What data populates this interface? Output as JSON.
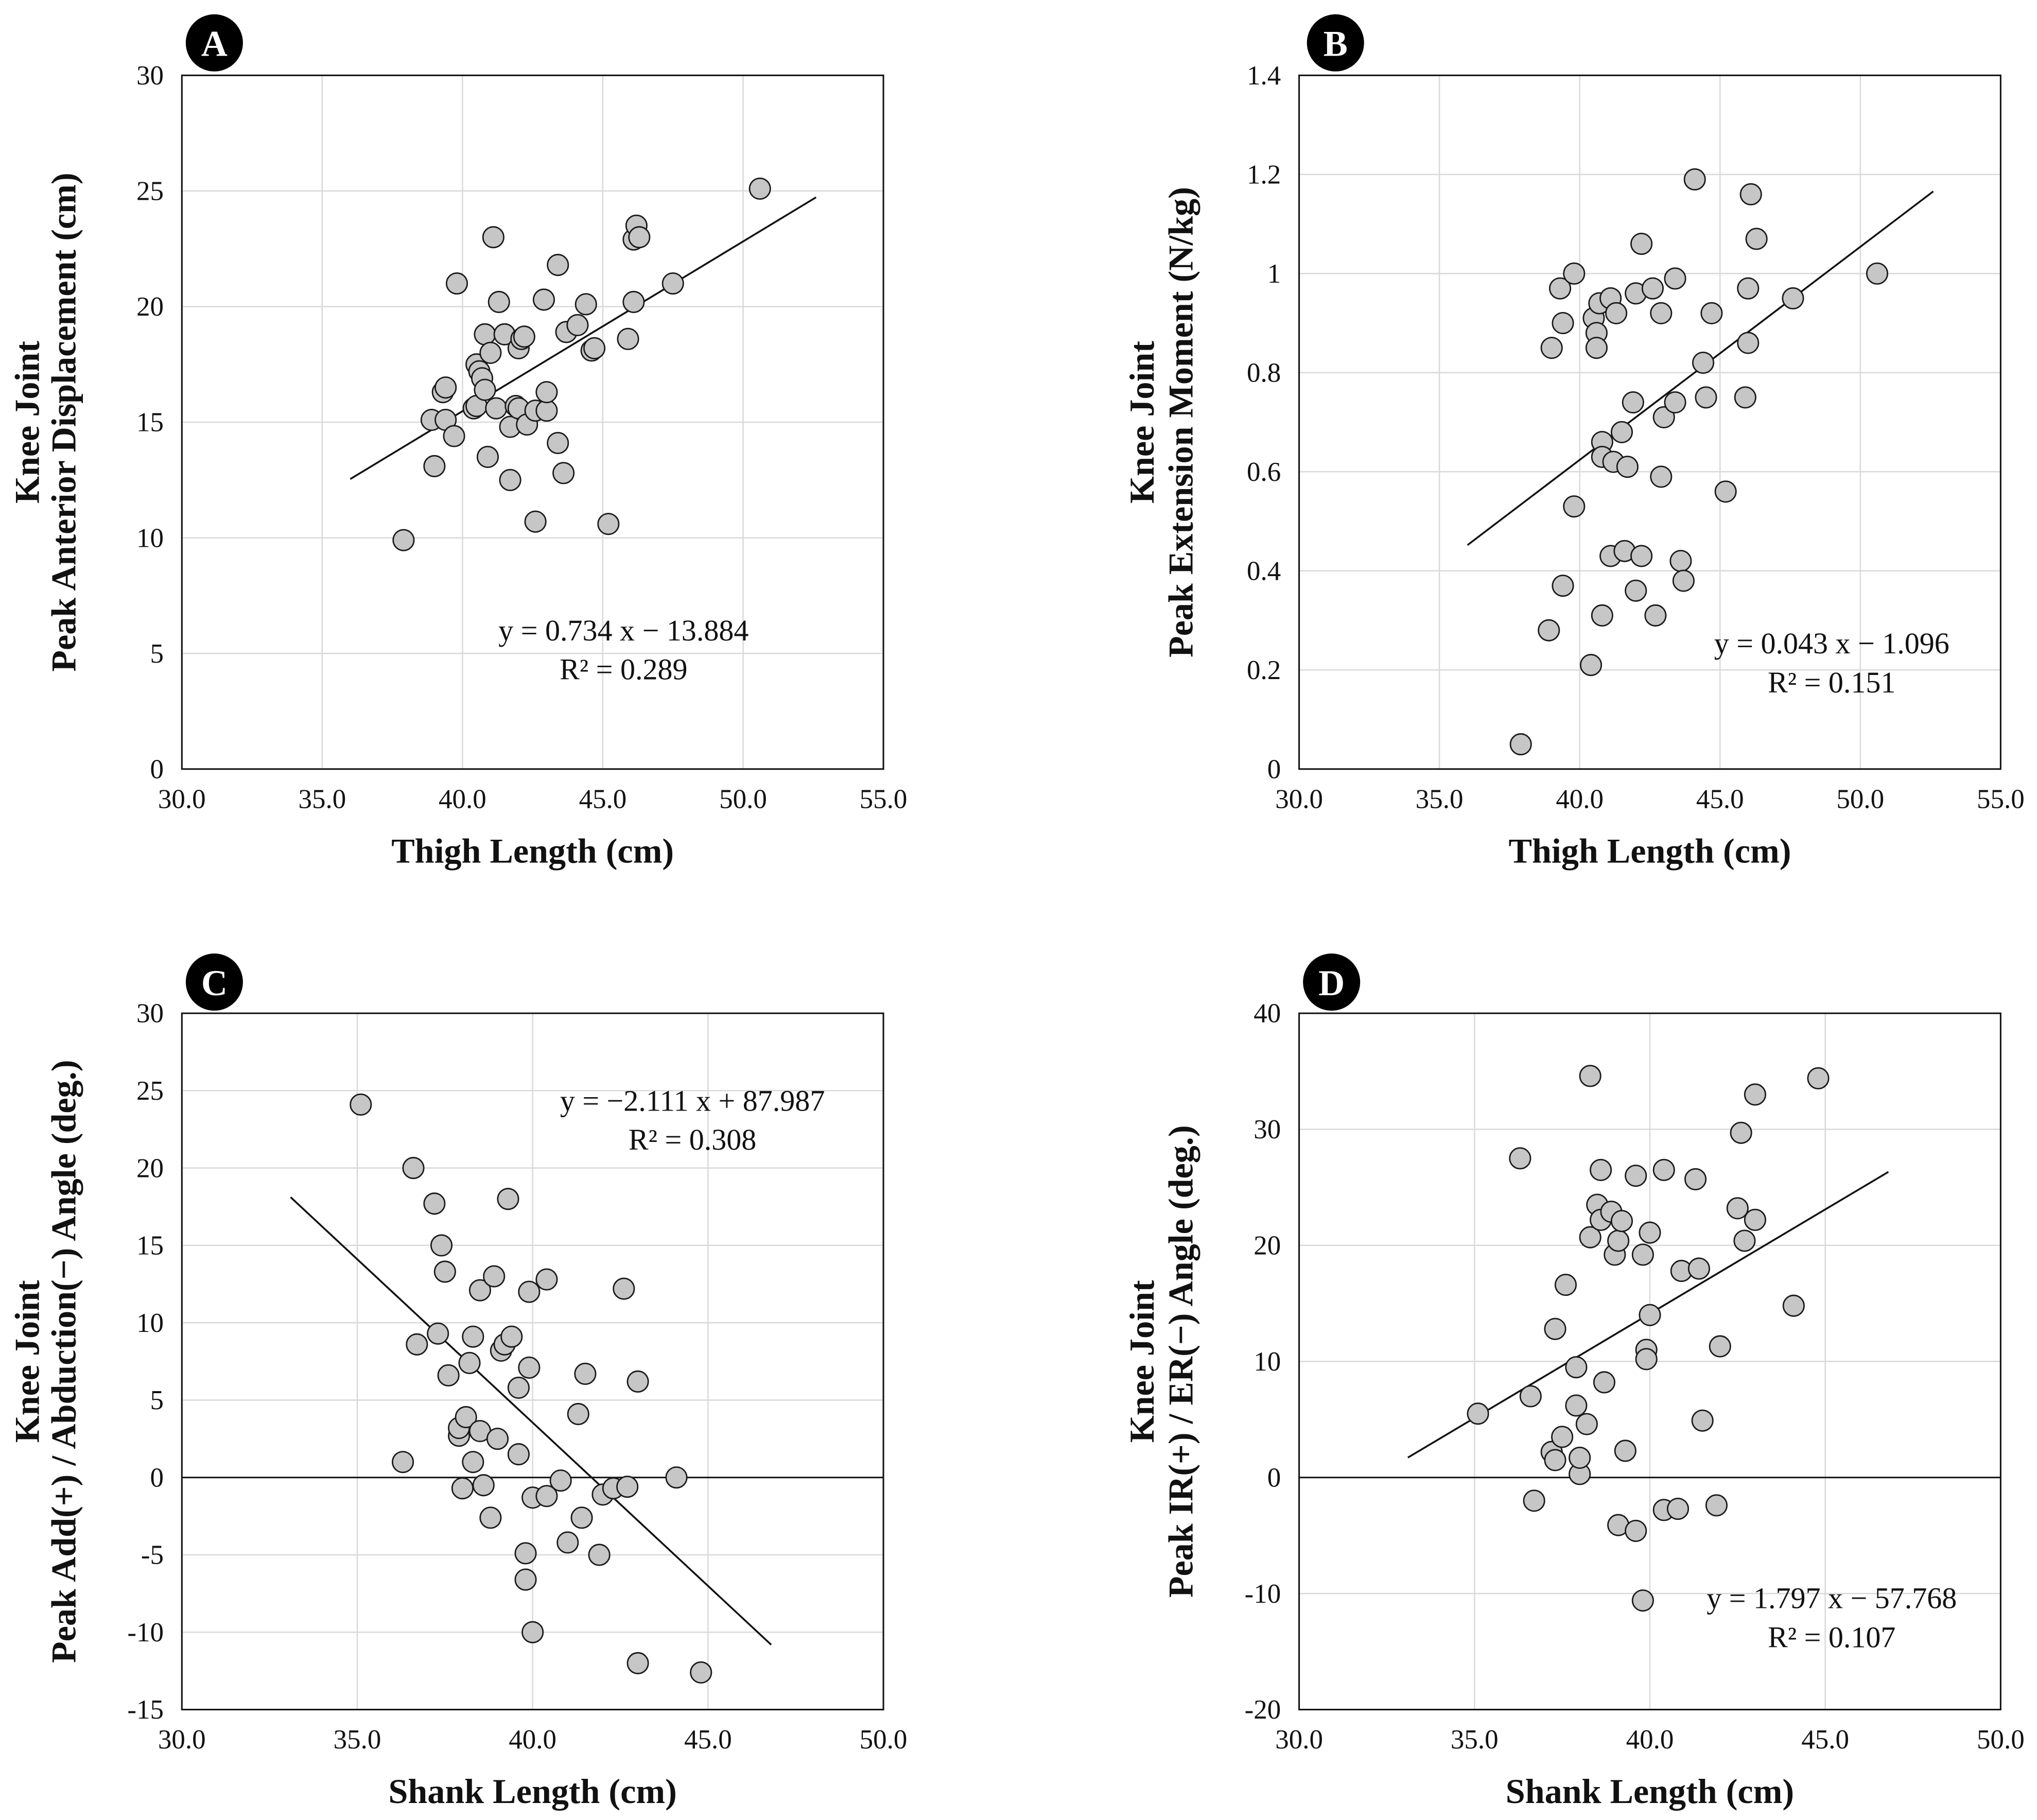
{
  "chart_data": [
    {
      "type": "scatter",
      "panel": "A",
      "xlabel": "Thigh Length (cm)",
      "ylabel": [
        "Knee Joint",
        "Peak Anterior Displacement (cm)"
      ],
      "xlim": [
        30,
        55
      ],
      "ylim": [
        0,
        30
      ],
      "xticks": [
        30,
        35,
        40,
        45,
        50,
        55
      ],
      "xtick_labels": [
        "30.0",
        "35.0",
        "40.0",
        "45.0",
        "50.0",
        "55.0"
      ],
      "yticks": [
        0,
        5,
        10,
        15,
        20,
        25,
        30
      ],
      "ytick_labels": [
        "0",
        "5",
        "10",
        "15",
        "20",
        "25",
        "30"
      ],
      "grid": true,
      "zero_line": false,
      "equation": "y = 0.734 x − 13.884",
      "r2": "R² = 0.289",
      "trendline": {
        "slope": 0.734,
        "intercept": -13.884,
        "x_range": [
          36.0,
          52.6
        ]
      },
      "points": [
        [
          37.9,
          9.9
        ],
        [
          38.9,
          15.1
        ],
        [
          39.0,
          13.1
        ],
        [
          39.3,
          16.3
        ],
        [
          39.4,
          16.5
        ],
        [
          39.4,
          15.1
        ],
        [
          39.7,
          14.4
        ],
        [
          39.8,
          21.0
        ],
        [
          40.4,
          15.6
        ],
        [
          40.5,
          15.7
        ],
        [
          40.5,
          17.5
        ],
        [
          40.6,
          17.2
        ],
        [
          40.7,
          16.9
        ],
        [
          40.8,
          18.8
        ],
        [
          40.8,
          16.4
        ],
        [
          40.9,
          13.5
        ],
        [
          41.0,
          18.0
        ],
        [
          41.1,
          23.0
        ],
        [
          41.2,
          15.6
        ],
        [
          41.3,
          20.2
        ],
        [
          41.5,
          18.8
        ],
        [
          41.7,
          12.5
        ],
        [
          41.7,
          14.8
        ],
        [
          41.9,
          15.7
        ],
        [
          42.0,
          18.2
        ],
        [
          42.0,
          15.6
        ],
        [
          42.1,
          18.6
        ],
        [
          42.2,
          18.7
        ],
        [
          42.3,
          14.9
        ],
        [
          42.6,
          15.5
        ],
        [
          42.6,
          10.7
        ],
        [
          42.9,
          20.3
        ],
        [
          43.0,
          15.5
        ],
        [
          43.0,
          16.3
        ],
        [
          43.4,
          14.1
        ],
        [
          43.4,
          21.8
        ],
        [
          43.6,
          12.8
        ],
        [
          43.7,
          18.9
        ],
        [
          44.1,
          19.2
        ],
        [
          44.4,
          20.1
        ],
        [
          44.6,
          18.1
        ],
        [
          44.7,
          18.2
        ],
        [
          45.2,
          10.6
        ],
        [
          45.9,
          18.6
        ],
        [
          46.1,
          20.2
        ],
        [
          46.1,
          22.9
        ],
        [
          46.2,
          23.5
        ],
        [
          46.3,
          23.0
        ],
        [
          47.5,
          21.0
        ],
        [
          50.6,
          25.1
        ]
      ]
    },
    {
      "type": "scatter",
      "panel": "B",
      "xlabel": "Thigh Length (cm)",
      "ylabel": [
        "Knee Joint",
        "Peak Extension Moment (N/kg)"
      ],
      "xlim": [
        30,
        55
      ],
      "ylim": [
        0,
        1.4
      ],
      "xticks": [
        30,
        35,
        40,
        45,
        50,
        55
      ],
      "xtick_labels": [
        "30.0",
        "35.0",
        "40.0",
        "45.0",
        "50.0",
        "55.0"
      ],
      "yticks": [
        0,
        0.2,
        0.4,
        0.6,
        0.8,
        1.0,
        1.2,
        1.4
      ],
      "ytick_labels": [
        "0",
        "0.2",
        "0.4",
        "0.6",
        "0.8",
        "1",
        "1.2",
        "1.4"
      ],
      "grid": true,
      "zero_line": false,
      "equation": "y = 0.043 x − 1.096",
      "r2": "R² = 0.151",
      "trendline": {
        "slope": 0.043,
        "intercept": -1.096,
        "x_range": [
          36.0,
          52.6
        ]
      },
      "points": [
        [
          37.9,
          0.05
        ],
        [
          38.9,
          0.28
        ],
        [
          39.0,
          0.85
        ],
        [
          39.3,
          0.97
        ],
        [
          39.4,
          0.9
        ],
        [
          39.4,
          0.37
        ],
        [
          39.8,
          0.53
        ],
        [
          39.8,
          1.0
        ],
        [
          40.4,
          0.21
        ],
        [
          40.5,
          0.91
        ],
        [
          40.6,
          0.88
        ],
        [
          40.6,
          0.85
        ],
        [
          40.7,
          0.94
        ],
        [
          40.8,
          0.31
        ],
        [
          40.8,
          0.66
        ],
        [
          40.8,
          0.63
        ],
        [
          41.1,
          0.95
        ],
        [
          41.1,
          0.43
        ],
        [
          41.2,
          0.62
        ],
        [
          41.3,
          0.92
        ],
        [
          41.5,
          0.68
        ],
        [
          41.6,
          0.44
        ],
        [
          41.7,
          0.61
        ],
        [
          41.9,
          0.74
        ],
        [
          42.0,
          0.36
        ],
        [
          42.0,
          0.96
        ],
        [
          42.2,
          1.06
        ],
        [
          42.2,
          0.43
        ],
        [
          42.6,
          0.97
        ],
        [
          42.7,
          0.31
        ],
        [
          42.9,
          0.92
        ],
        [
          42.9,
          0.59
        ],
        [
          43.0,
          0.71
        ],
        [
          43.4,
          0.74
        ],
        [
          43.4,
          0.99
        ],
        [
          43.6,
          0.42
        ],
        [
          43.7,
          0.38
        ],
        [
          44.1,
          1.19
        ],
        [
          44.4,
          0.82
        ],
        [
          44.5,
          0.75
        ],
        [
          44.7,
          0.92
        ],
        [
          45.2,
          0.56
        ],
        [
          45.9,
          0.75
        ],
        [
          46.0,
          0.97
        ],
        [
          46.0,
          0.86
        ],
        [
          46.1,
          1.16
        ],
        [
          46.3,
          1.07
        ],
        [
          47.6,
          0.95
        ],
        [
          50.6,
          1.0
        ]
      ]
    },
    {
      "type": "scatter",
      "panel": "C",
      "xlabel": "Shank Length (cm)",
      "ylabel": [
        "Knee Joint",
        "Peak Add(+) / Abduction(−) Angle (deg.)"
      ],
      "xlim": [
        30,
        50
      ],
      "ylim": [
        -15,
        30
      ],
      "xticks": [
        30,
        35,
        40,
        45,
        50
      ],
      "xtick_labels": [
        "30.0",
        "35.0",
        "40.0",
        "45.0",
        "50.0"
      ],
      "yticks": [
        -15,
        -10,
        -5,
        0,
        5,
        10,
        15,
        20,
        25,
        30
      ],
      "ytick_labels": [
        "-15",
        "-10",
        "-5",
        "0",
        "5",
        "10",
        "15",
        "20",
        "25",
        "30"
      ],
      "grid": true,
      "zero_line": true,
      "equation": "y = −2.111 x + 87.987",
      "r2": "R² = 0.308",
      "trendline": {
        "slope": -2.111,
        "intercept": 87.987,
        "x_range": [
          33.1,
          46.8
        ]
      },
      "points": [
        [
          35.1,
          24.1
        ],
        [
          36.3,
          1.0
        ],
        [
          36.6,
          20.0
        ],
        [
          36.7,
          8.6
        ],
        [
          37.2,
          17.7
        ],
        [
          37.3,
          9.3
        ],
        [
          37.4,
          15.0
        ],
        [
          37.5,
          13.3
        ],
        [
          37.6,
          6.6
        ],
        [
          37.9,
          2.7
        ],
        [
          37.9,
          3.2
        ],
        [
          38.0,
          -0.7
        ],
        [
          38.1,
          3.9
        ],
        [
          38.2,
          7.4
        ],
        [
          38.3,
          1.0
        ],
        [
          38.3,
          9.1
        ],
        [
          38.5,
          3.0
        ],
        [
          38.5,
          12.1
        ],
        [
          38.6,
          -0.5
        ],
        [
          38.8,
          -2.6
        ],
        [
          38.9,
          13.0
        ],
        [
          39.0,
          2.5
        ],
        [
          39.1,
          8.2
        ],
        [
          39.2,
          8.6
        ],
        [
          39.3,
          18.0
        ],
        [
          39.4,
          9.1
        ],
        [
          39.6,
          1.5
        ],
        [
          39.6,
          5.8
        ],
        [
          39.8,
          -4.9
        ],
        [
          39.8,
          -6.6
        ],
        [
          39.9,
          12.0
        ],
        [
          39.9,
          7.1
        ],
        [
          40.0,
          -1.3
        ],
        [
          40.0,
          -10.0
        ],
        [
          40.4,
          -1.2
        ],
        [
          40.4,
          12.8
        ],
        [
          40.8,
          -0.2
        ],
        [
          41.0,
          -4.2
        ],
        [
          41.3,
          4.1
        ],
        [
          41.4,
          -2.6
        ],
        [
          41.5,
          6.7
        ],
        [
          41.9,
          -5.0
        ],
        [
          42.0,
          -1.1
        ],
        [
          42.3,
          -0.7
        ],
        [
          42.6,
          12.2
        ],
        [
          42.7,
          -0.6
        ],
        [
          43.0,
          6.2
        ],
        [
          43.0,
          -12.0
        ],
        [
          44.1,
          0.0
        ],
        [
          44.8,
          -12.6
        ]
      ]
    },
    {
      "type": "scatter",
      "panel": "D",
      "xlabel": "Shank Length (cm)",
      "ylabel": [
        "Knee Joint",
        "Peak IR(+) / ER(−) Angle (deg.)"
      ],
      "xlim": [
        30,
        50
      ],
      "ylim": [
        -20,
        40
      ],
      "xticks": [
        30,
        35,
        40,
        45,
        50
      ],
      "xtick_labels": [
        "30.0",
        "35.0",
        "40.0",
        "45.0",
        "50.0"
      ],
      "yticks": [
        -20,
        -10,
        0,
        10,
        20,
        30,
        40
      ],
      "ytick_labels": [
        "-20",
        "-10",
        "0",
        "10",
        "20",
        "30",
        "40"
      ],
      "grid": true,
      "zero_line": true,
      "equation": "y = 1.797 x − 57.768",
      "r2": "R² = 0.107",
      "trendline": {
        "slope": 1.797,
        "intercept": -57.768,
        "x_range": [
          33.1,
          46.8
        ]
      },
      "points": [
        [
          35.1,
          5.5
        ],
        [
          36.3,
          27.5
        ],
        [
          36.6,
          7.0
        ],
        [
          36.7,
          -2.0
        ],
        [
          37.2,
          2.2
        ],
        [
          37.3,
          12.8
        ],
        [
          37.3,
          1.5
        ],
        [
          37.5,
          3.5
        ],
        [
          37.6,
          16.6
        ],
        [
          37.9,
          9.5
        ],
        [
          37.9,
          6.2
        ],
        [
          38.0,
          0.3
        ],
        [
          38.0,
          1.7
        ],
        [
          38.2,
          4.6
        ],
        [
          38.3,
          34.6
        ],
        [
          38.3,
          20.7
        ],
        [
          38.5,
          23.5
        ],
        [
          38.6,
          26.5
        ],
        [
          38.6,
          22.2
        ],
        [
          38.7,
          8.2
        ],
        [
          38.9,
          22.9
        ],
        [
          39.0,
          19.2
        ],
        [
          39.1,
          -4.1
        ],
        [
          39.1,
          20.4
        ],
        [
          39.2,
          22.1
        ],
        [
          39.3,
          2.3
        ],
        [
          39.6,
          26.0
        ],
        [
          39.6,
          -4.6
        ],
        [
          39.8,
          19.2
        ],
        [
          39.8,
          -10.6
        ],
        [
          39.9,
          11.0
        ],
        [
          39.9,
          10.2
        ],
        [
          40.0,
          14.0
        ],
        [
          40.0,
          21.1
        ],
        [
          40.4,
          26.5
        ],
        [
          40.4,
          -2.8
        ],
        [
          40.8,
          -2.7
        ],
        [
          40.9,
          17.8
        ],
        [
          41.3,
          25.7
        ],
        [
          41.4,
          18.0
        ],
        [
          41.5,
          4.9
        ],
        [
          41.9,
          -2.4
        ],
        [
          42.0,
          11.3
        ],
        [
          42.5,
          23.2
        ],
        [
          42.6,
          29.7
        ],
        [
          42.7,
          20.4
        ],
        [
          43.0,
          33.0
        ],
        [
          43.0,
          22.2
        ],
        [
          44.1,
          14.8
        ],
        [
          44.8,
          34.4
        ]
      ]
    }
  ],
  "colors": {
    "marker_fill": "#c6c6c6",
    "marker_stroke": "#1a1a1a",
    "grid": "#d9d9d9",
    "badge": "#000000"
  }
}
